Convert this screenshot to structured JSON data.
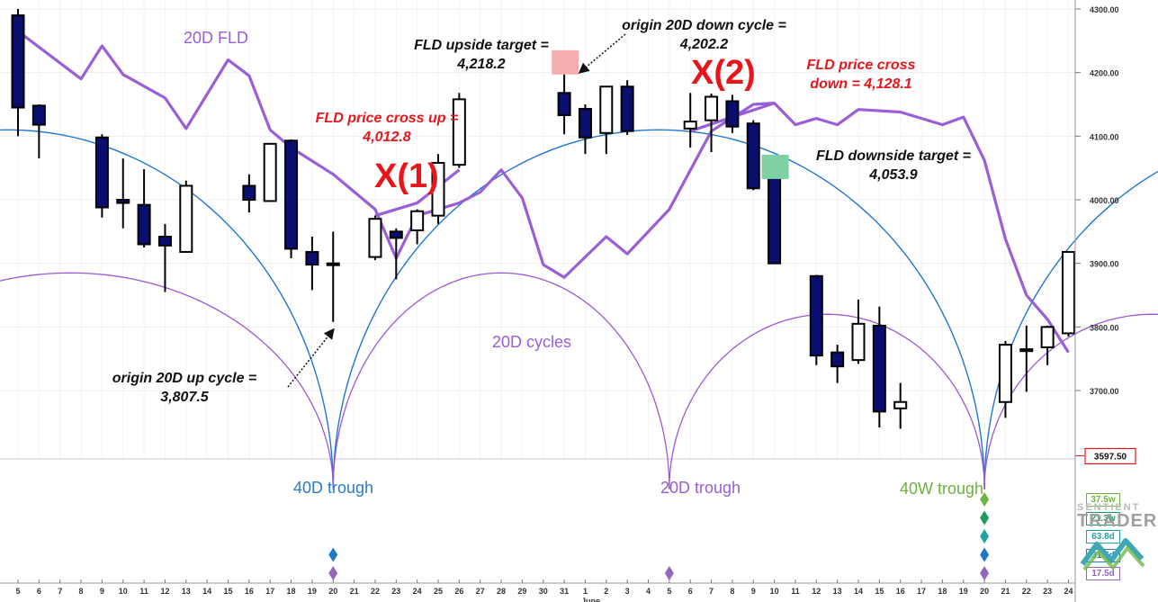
{
  "chart_data": {
    "type": "candlestick",
    "y_axis": {
      "position": "right",
      "ticks": [
        "4300.00",
        "4200.00",
        "4100.00",
        "4000.00",
        "3900.00",
        "3800.00",
        "3700.00"
      ],
      "ylim": [
        3542,
        4310
      ],
      "price_box": "3597.50"
    },
    "x_tick_labels": [
      "5",
      "6",
      "7",
      "8",
      "9",
      "10",
      "11",
      "12",
      "13",
      "14",
      "15",
      "16",
      "17",
      "18",
      "19",
      "20",
      "21",
      "22",
      "23",
      "24",
      "25",
      "26",
      "27",
      "28",
      "29",
      "30",
      "31",
      "1",
      "2",
      "3",
      "4",
      "5",
      "6",
      "7",
      "8",
      "9",
      "10",
      "11",
      "12",
      "13",
      "14",
      "15",
      "16",
      "17",
      "18",
      "19",
      "20",
      "21",
      "22",
      "23",
      "24"
    ],
    "month_label": "June",
    "candles": [
      {
        "i": 0,
        "o": 4290,
        "h": 4300,
        "l": 4100,
        "c": 4145
      },
      {
        "i": 1,
        "o": 4148,
        "h": 4150,
        "l": 4065,
        "c": 4118
      },
      {
        "i": 4,
        "o": 4098,
        "h": 4103,
        "l": 3972,
        "c": 3988
      },
      {
        "i": 5,
        "o": 4000,
        "h": 4065,
        "l": 3955,
        "c": 3995
      },
      {
        "i": 6,
        "o": 3992,
        "h": 4048,
        "l": 3925,
        "c": 3930
      },
      {
        "i": 7,
        "o": 3942,
        "h": 3962,
        "l": 3855,
        "c": 3928
      },
      {
        "i": 8,
        "o": 3918,
        "h": 4030,
        "l": 3918,
        "c": 4022
      },
      {
        "i": 11,
        "o": 4022,
        "h": 4040,
        "l": 3980,
        "c": 4000
      },
      {
        "i": 12,
        "o": 3998,
        "h": 4088,
        "l": 3998,
        "c": 4088
      },
      {
        "i": 13,
        "o": 4093,
        "h": 4095,
        "l": 3908,
        "c": 3923
      },
      {
        "i": 14,
        "o": 3918,
        "h": 3942,
        "l": 3858,
        "c": 3898
      },
      {
        "i": 15,
        "o": 3900,
        "h": 3950,
        "l": 3808,
        "c": 3900
      },
      {
        "i": 17,
        "o": 3910,
        "h": 3975,
        "l": 3905,
        "c": 3970
      },
      {
        "i": 18,
        "o": 3950,
        "h": 3955,
        "l": 3875,
        "c": 3940
      },
      {
        "i": 19,
        "o": 3952,
        "h": 3985,
        "l": 3930,
        "c": 3982
      },
      {
        "i": 20,
        "o": 3975,
        "h": 4072,
        "l": 3962,
        "c": 4058
      },
      {
        "i": 21,
        "o": 4055,
        "h": 4168,
        "l": 4050,
        "c": 4158
      },
      {
        "i": 26,
        "o": 4168,
        "h": 4202,
        "l": 4103,
        "c": 4133
      },
      {
        "i": 27,
        "o": 4143,
        "h": 4150,
        "l": 4072,
        "c": 4098
      },
      {
        "i": 28,
        "o": 4105,
        "h": 4175,
        "l": 4072,
        "c": 4178
      },
      {
        "i": 29,
        "o": 4178,
        "h": 4188,
        "l": 4102,
        "c": 4108
      },
      {
        "i": 32,
        "o": 4112,
        "h": 4168,
        "l": 4082,
        "c": 4123
      },
      {
        "i": 33,
        "o": 4125,
        "h": 4167,
        "l": 4075,
        "c": 4162
      },
      {
        "i": 34,
        "o": 4155,
        "h": 4165,
        "l": 4105,
        "c": 4115
      },
      {
        "i": 35,
        "o": 4120,
        "h": 4125,
        "l": 4015,
        "c": 4018
      },
      {
        "i": 36,
        "o": 4038,
        "h": 4040,
        "l": 3900,
        "c": 3900
      },
      {
        "i": 38,
        "o": 3880,
        "h": 3882,
        "l": 3740,
        "c": 3755
      },
      {
        "i": 39,
        "o": 3760,
        "h": 3772,
        "l": 3712,
        "c": 3738
      },
      {
        "i": 40,
        "o": 3748,
        "h": 3843,
        "l": 3742,
        "c": 3805
      },
      {
        "i": 41,
        "o": 3802,
        "h": 3832,
        "l": 3642,
        "c": 3667
      },
      {
        "i": 42,
        "o": 3672,
        "h": 3712,
        "l": 3640,
        "c": 3682
      },
      {
        "i": 47,
        "o": 3682,
        "h": 3778,
        "l": 3657,
        "c": 3772
      },
      {
        "i": 48,
        "o": 3765,
        "h": 3802,
        "l": 3698,
        "c": 3762
      },
      {
        "i": 49,
        "o": 3768,
        "h": 3802,
        "l": 3740,
        "c": 3800
      },
      {
        "i": 50,
        "o": 3790,
        "h": 3918,
        "l": 3785,
        "c": 3918
      }
    ],
    "fld": [
      [
        0,
        4265
      ],
      [
        3,
        4190
      ],
      [
        4,
        4242
      ],
      [
        5,
        4197
      ],
      [
        7,
        4160
      ],
      [
        8,
        4112
      ],
      [
        10,
        4220
      ],
      [
        11,
        4195
      ],
      [
        12,
        4110
      ],
      [
        13,
        4082
      ],
      [
        15,
        4040
      ],
      [
        17,
        3985
      ],
      [
        18,
        3908
      ],
      [
        19,
        3975
      ],
      [
        21,
        3995
      ],
      [
        22,
        4012
      ],
      [
        23,
        4047
      ],
      [
        24,
        4003
      ],
      [
        25,
        3898
      ],
      [
        26,
        3878
      ],
      [
        28,
        3942
      ],
      [
        29,
        3915
      ],
      [
        31,
        3985
      ],
      [
        33,
        4108
      ],
      [
        35,
        4150
      ],
      [
        36,
        4152
      ],
      [
        37,
        4118
      ],
      [
        38,
        4128
      ],
      [
        39,
        4118
      ],
      [
        40,
        4142
      ],
      [
        42,
        4138
      ],
      [
        44,
        4118
      ],
      [
        45,
        4130
      ],
      [
        46,
        4062
      ],
      [
        47,
        3938
      ],
      [
        48,
        3850
      ],
      [
        49,
        3812
      ],
      [
        50,
        3760
      ]
    ],
    "fld_cross_up_line": [
      [
        17,
        3975
      ],
      [
        19,
        3995
      ],
      [
        21,
        4047
      ]
    ],
    "fld_cross_down_line": [
      [
        32,
        4108
      ],
      [
        34,
        4130
      ],
      [
        36,
        4152
      ]
    ],
    "cycle_40d_arc": {
      "left_trough_i": 15,
      "right_trough_i": 46,
      "trough_price": 3545,
      "peak_price": 4110,
      "extend_left_to_i": -1
    },
    "cycle_20d_arcs": [
      {
        "left_i": -10,
        "right_i": 15,
        "trough": 3545,
        "peak": 3885
      },
      {
        "left_i": 15,
        "right_i": 31,
        "trough": 3545,
        "peak": 3885
      },
      {
        "left_i": 31,
        "right_i": 46,
        "trough": 3545,
        "peak": 3820
      },
      {
        "left_i": 46,
        "right_i": 62,
        "trough": 3545,
        "peak": 3820
      }
    ],
    "targets": [
      {
        "name": "upside",
        "i": 26,
        "price": 4218.2,
        "color": "#f7aeb0"
      },
      {
        "name": "downside",
        "i": 36,
        "price": 4053.9,
        "color": "#7fd1a3"
      }
    ],
    "labels": {
      "fld": "20D FLD",
      "cycles": "20D cycles",
      "trough_40d": "40D trough",
      "trough_20d": "20D trough",
      "trough_40w": "40W trough",
      "x1": "X(1)",
      "x2": "X(2)",
      "fld_up_target_l1": "FLD upside target =",
      "fld_up_target_l2": "4,218.2",
      "origin_down_l1": "origin 20D down cycle =",
      "origin_down_l2": "4,202.2",
      "cross_up_l1": "FLD price cross up =",
      "cross_up_l2": "4,012.8",
      "cross_down_l1": "FLD price cross",
      "cross_down_l2": "down = 4,128.1",
      "down_target_l1": "FLD downside target =",
      "down_target_l2": "4,053.9",
      "origin_up_l1": "origin 20D up cycle =",
      "origin_up_l2": "3,807.5"
    },
    "cycle_length_labels": [
      {
        "text": "37.5w",
        "color": "#6db33f"
      },
      {
        "text": "21.3w",
        "color": "#1a9e5a"
      },
      {
        "text": "63.8d",
        "color": "#22a3a3"
      },
      {
        "text": "31.5d",
        "color": "#1f77c9"
      },
      {
        "text": "17.5d",
        "color": "#9467bd"
      }
    ],
    "diamond_markers": [
      {
        "i": 15,
        "colors": [
          "#1f77c9",
          "#9467bd"
        ]
      },
      {
        "i": 31,
        "colors": [
          "#9467bd"
        ]
      },
      {
        "i": 46,
        "colors": [
          "#6db33f",
          "#1a9e5a",
          "#22a3a3",
          "#1f77c9",
          "#9467bd"
        ]
      }
    ],
    "colors": {
      "fld": "#9a5fd6",
      "cycle40": "#1f77d0",
      "cycle20": "#9b59d6",
      "bear": "#0a0e6e",
      "bull": "#ffffff"
    }
  },
  "logo": {
    "line1": "SENTIENT",
    "line2": "TRADER"
  }
}
